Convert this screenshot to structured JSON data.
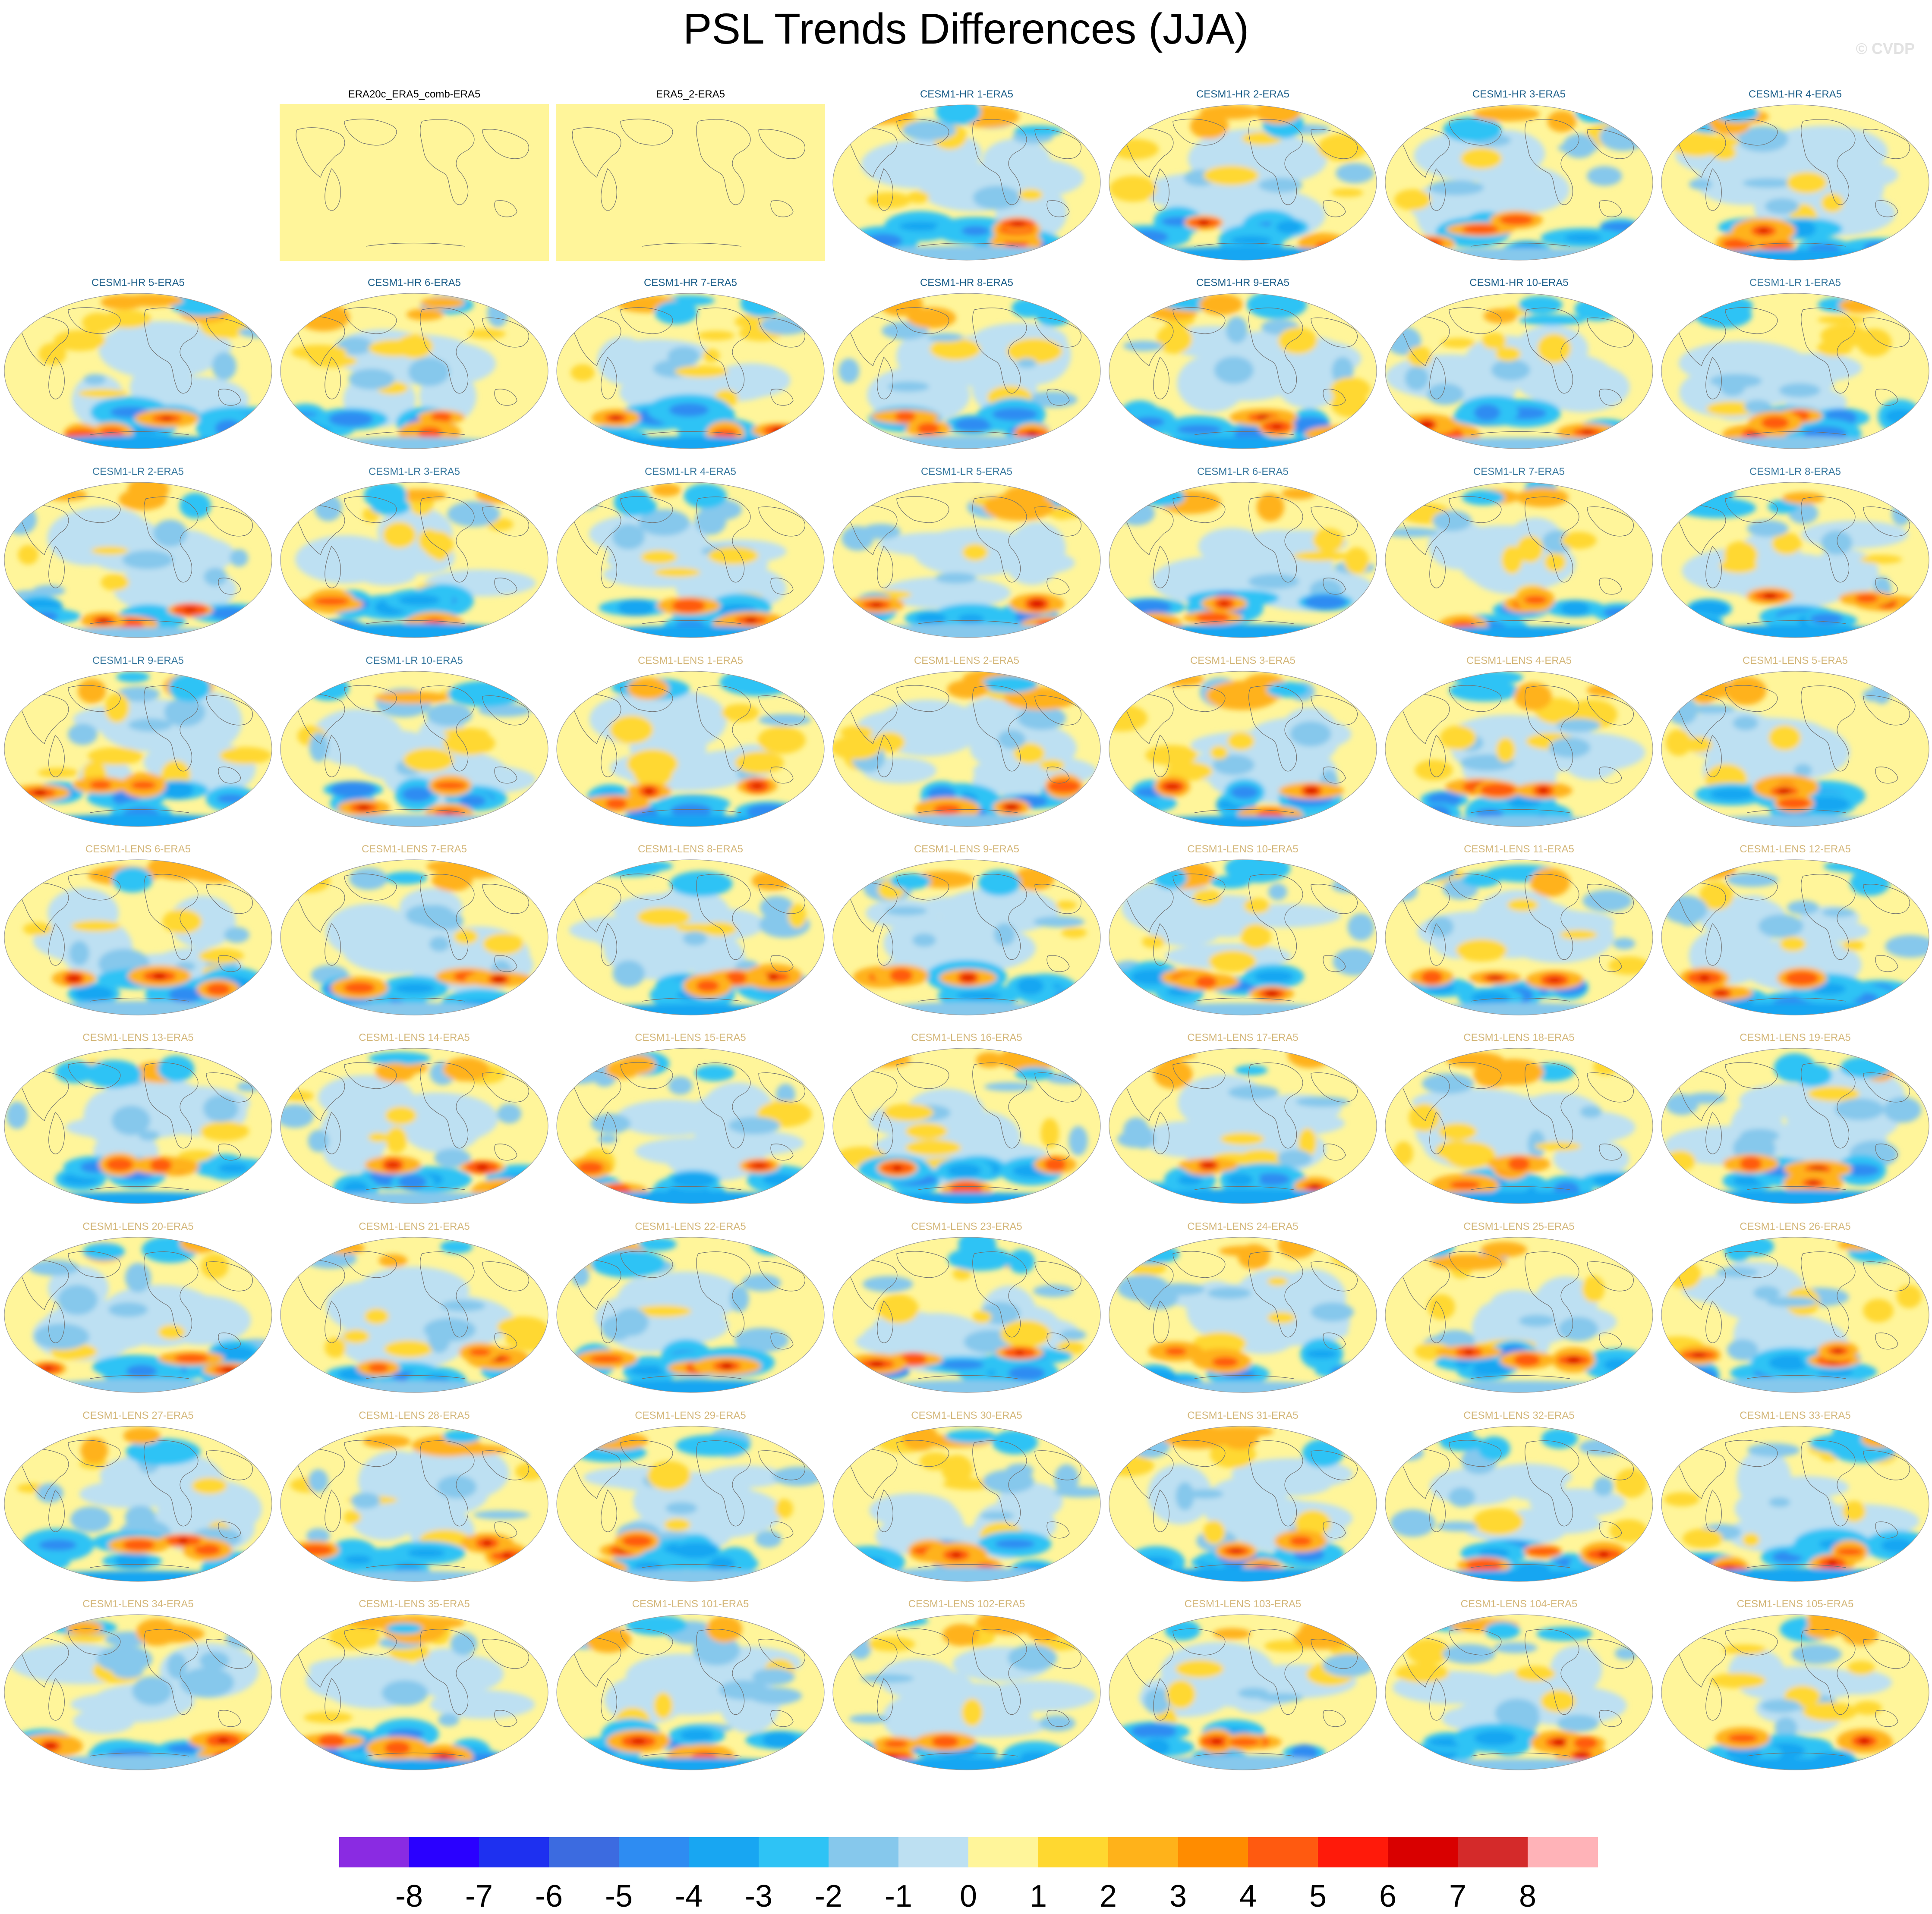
{
  "title": "PSL Trends Differences (JJA)",
  "watermark": "© CVDP",
  "panels": [
    {
      "label": "ERA20c_ERA5_comb-ERA5",
      "label_color": "#000000",
      "kind": "uniform"
    },
    {
      "label": "ERA5_2-ERA5",
      "label_color": "#000000",
      "kind": "uniform"
    },
    {
      "label": "CESM1-HR 1-ERA5",
      "label_color": "#1c5f8a",
      "kind": "field"
    },
    {
      "label": "CESM1-HR 2-ERA5",
      "label_color": "#1c5f8a",
      "kind": "field"
    },
    {
      "label": "CESM1-HR 3-ERA5",
      "label_color": "#1c5f8a",
      "kind": "field"
    },
    {
      "label": "CESM1-HR 4-ERA5",
      "label_color": "#1c5f8a",
      "kind": "field"
    },
    {
      "label": "CESM1-HR 5-ERA5",
      "label_color": "#1c5f8a",
      "kind": "field"
    },
    {
      "label": "CESM1-HR 6-ERA5",
      "label_color": "#1c5f8a",
      "kind": "field"
    },
    {
      "label": "CESM1-HR 7-ERA5",
      "label_color": "#1c5f8a",
      "kind": "field"
    },
    {
      "label": "CESM1-HR 8-ERA5",
      "label_color": "#1c5f8a",
      "kind": "field"
    },
    {
      "label": "CESM1-HR 9-ERA5",
      "label_color": "#1c5f8a",
      "kind": "field"
    },
    {
      "label": "CESM1-HR 10-ERA5",
      "label_color": "#1c5f8a",
      "kind": "field"
    },
    {
      "label": "CESM1-LR 1-ERA5",
      "label_color": "#3a7aa0",
      "kind": "field"
    },
    {
      "label": "CESM1-LR 2-ERA5",
      "label_color": "#3a7aa0",
      "kind": "field"
    },
    {
      "label": "CESM1-LR 3-ERA5",
      "label_color": "#3a7aa0",
      "kind": "field"
    },
    {
      "label": "CESM1-LR 4-ERA5",
      "label_color": "#3a7aa0",
      "kind": "field"
    },
    {
      "label": "CESM1-LR 5-ERA5",
      "label_color": "#3a7aa0",
      "kind": "field"
    },
    {
      "label": "CESM1-LR 6-ERA5",
      "label_color": "#3a7aa0",
      "kind": "field"
    },
    {
      "label": "CESM1-LR 7-ERA5",
      "label_color": "#3a7aa0",
      "kind": "field"
    },
    {
      "label": "CESM1-LR 8-ERA5",
      "label_color": "#3a7aa0",
      "kind": "field"
    },
    {
      "label": "CESM1-LR 9-ERA5",
      "label_color": "#3a7aa0",
      "kind": "field"
    },
    {
      "label": "CESM1-LR 10-ERA5",
      "label_color": "#3a7aa0",
      "kind": "field"
    },
    {
      "label": "CESM1-LENS 1-ERA5",
      "label_color": "#d4b77a",
      "kind": "field"
    },
    {
      "label": "CESM1-LENS 2-ERA5",
      "label_color": "#d4b77a",
      "kind": "field"
    },
    {
      "label": "CESM1-LENS 3-ERA5",
      "label_color": "#d4b77a",
      "kind": "field"
    },
    {
      "label": "CESM1-LENS 4-ERA5",
      "label_color": "#d4b77a",
      "kind": "field"
    },
    {
      "label": "CESM1-LENS 5-ERA5",
      "label_color": "#d4b77a",
      "kind": "field"
    },
    {
      "label": "CESM1-LENS 6-ERA5",
      "label_color": "#d4b77a",
      "kind": "field"
    },
    {
      "label": "CESM1-LENS 7-ERA5",
      "label_color": "#d4b77a",
      "kind": "field"
    },
    {
      "label": "CESM1-LENS 8-ERA5",
      "label_color": "#d4b77a",
      "kind": "field"
    },
    {
      "label": "CESM1-LENS 9-ERA5",
      "label_color": "#d4b77a",
      "kind": "field"
    },
    {
      "label": "CESM1-LENS 10-ERA5",
      "label_color": "#d4b77a",
      "kind": "field"
    },
    {
      "label": "CESM1-LENS 11-ERA5",
      "label_color": "#d4b77a",
      "kind": "field"
    },
    {
      "label": "CESM1-LENS 12-ERA5",
      "label_color": "#d4b77a",
      "kind": "field"
    },
    {
      "label": "CESM1-LENS 13-ERA5",
      "label_color": "#d4b77a",
      "kind": "field"
    },
    {
      "label": "CESM1-LENS 14-ERA5",
      "label_color": "#d4b77a",
      "kind": "field"
    },
    {
      "label": "CESM1-LENS 15-ERA5",
      "label_color": "#d4b77a",
      "kind": "field"
    },
    {
      "label": "CESM1-LENS 16-ERA5",
      "label_color": "#d4b77a",
      "kind": "field"
    },
    {
      "label": "CESM1-LENS 17-ERA5",
      "label_color": "#d4b77a",
      "kind": "field"
    },
    {
      "label": "CESM1-LENS 18-ERA5",
      "label_color": "#d4b77a",
      "kind": "field"
    },
    {
      "label": "CESM1-LENS 19-ERA5",
      "label_color": "#d4b77a",
      "kind": "field"
    },
    {
      "label": "CESM1-LENS 20-ERA5",
      "label_color": "#d4b77a",
      "kind": "field"
    },
    {
      "label": "CESM1-LENS 21-ERA5",
      "label_color": "#d4b77a",
      "kind": "field"
    },
    {
      "label": "CESM1-LENS 22-ERA5",
      "label_color": "#d4b77a",
      "kind": "field"
    },
    {
      "label": "CESM1-LENS 23-ERA5",
      "label_color": "#d4b77a",
      "kind": "field"
    },
    {
      "label": "CESM1-LENS 24-ERA5",
      "label_color": "#d4b77a",
      "kind": "field"
    },
    {
      "label": "CESM1-LENS 25-ERA5",
      "label_color": "#d4b77a",
      "kind": "field"
    },
    {
      "label": "CESM1-LENS 26-ERA5",
      "label_color": "#d4b77a",
      "kind": "field"
    },
    {
      "label": "CESM1-LENS 27-ERA5",
      "label_color": "#d4b77a",
      "kind": "field"
    },
    {
      "label": "CESM1-LENS 28-ERA5",
      "label_color": "#d4b77a",
      "kind": "field"
    },
    {
      "label": "CESM1-LENS 29-ERA5",
      "label_color": "#d4b77a",
      "kind": "field"
    },
    {
      "label": "CESM1-LENS 30-ERA5",
      "label_color": "#d4b77a",
      "kind": "field"
    },
    {
      "label": "CESM1-LENS 31-ERA5",
      "label_color": "#d4b77a",
      "kind": "field"
    },
    {
      "label": "CESM1-LENS 32-ERA5",
      "label_color": "#d4b77a",
      "kind": "field"
    },
    {
      "label": "CESM1-LENS 33-ERA5",
      "label_color": "#d4b77a",
      "kind": "field"
    },
    {
      "label": "CESM1-LENS 34-ERA5",
      "label_color": "#d4b77a",
      "kind": "field"
    },
    {
      "label": "CESM1-LENS 35-ERA5",
      "label_color": "#d4b77a",
      "kind": "field"
    },
    {
      "label": "CESM1-LENS 101-ERA5",
      "label_color": "#d4b77a",
      "kind": "field"
    },
    {
      "label": "CESM1-LENS 102-ERA5",
      "label_color": "#d4b77a",
      "kind": "field"
    },
    {
      "label": "CESM1-LENS 103-ERA5",
      "label_color": "#d4b77a",
      "kind": "field"
    },
    {
      "label": "CESM1-LENS 104-ERA5",
      "label_color": "#d4b77a",
      "kind": "field"
    },
    {
      "label": "CESM1-LENS 105-ERA5",
      "label_color": "#d4b77a",
      "kind": "field"
    }
  ],
  "colorbar": {
    "colors": [
      "#8a2be2",
      "#2a00ff",
      "#1e30f0",
      "#3c6be0",
      "#2e8cf2",
      "#18a6f2",
      "#2ec3f5",
      "#86c8ec",
      "#bde0f2",
      "#fff59a",
      "#ffd830",
      "#ffb21a",
      "#ff8c00",
      "#ff5a10",
      "#ff1a0a",
      "#d90000",
      "#d42a2a",
      "#ffb3b8"
    ],
    "labels": [
      "-8",
      "-7",
      "-6",
      "-5",
      "-4",
      "-3",
      "-2",
      "-1",
      "0",
      "1",
      "2",
      "3",
      "4",
      "5",
      "6",
      "7",
      "8"
    ]
  }
}
